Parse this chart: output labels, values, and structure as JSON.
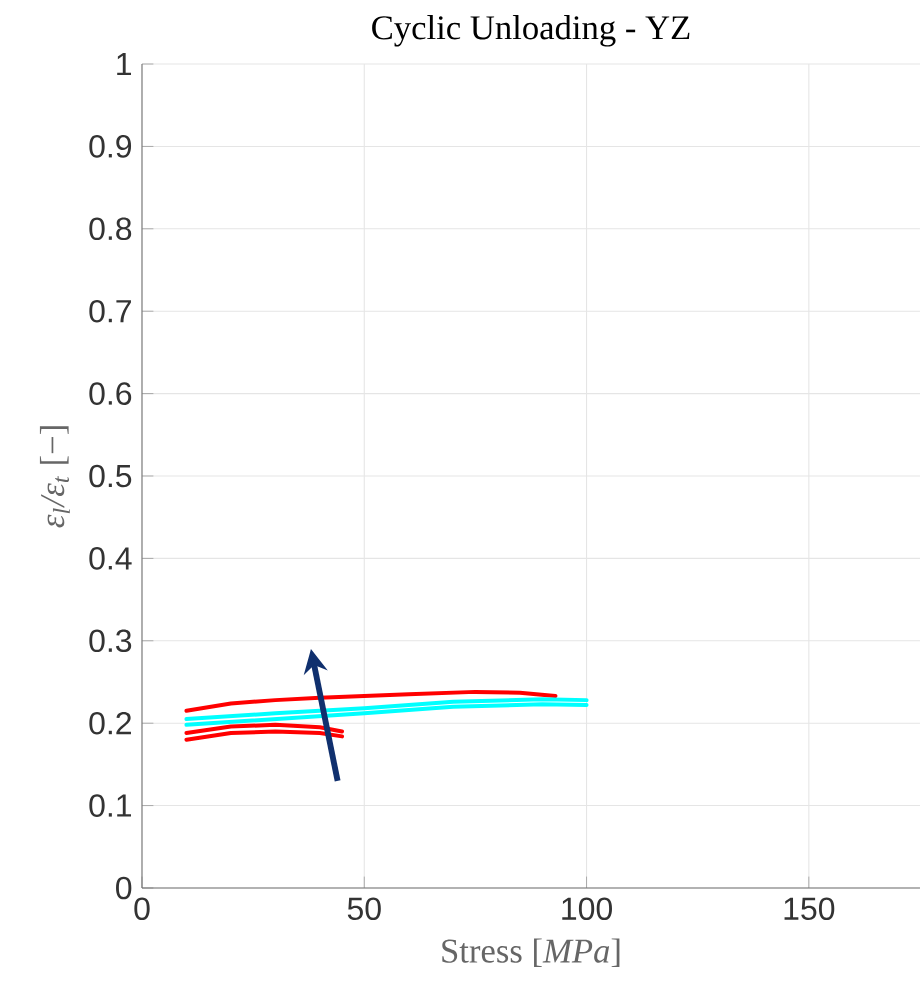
{
  "chart_data": {
    "type": "line",
    "title": "Cyclic Unloading - YZ",
    "xlabel": "Stress [*MPa*]",
    "ylabel": "*ε$_{l}$/ε$_{t}$* [−]",
    "xlim": [
      0,
      175
    ],
    "ylim": [
      0,
      1
    ],
    "xticks": [
      0,
      50,
      100,
      150
    ],
    "yticks": [
      0,
      0.1,
      0.2,
      0.3,
      0.4,
      0.5,
      0.6,
      0.7,
      0.8,
      0.9,
      1
    ],
    "grid": true,
    "marker": "none",
    "line_style": "solid",
    "series": [
      {
        "color": "#ff0000",
        "x": [
          10,
          20,
          30,
          40,
          50,
          60,
          70,
          75,
          85,
          93
        ],
        "values": [
          0.215,
          0.224,
          0.228,
          0.231,
          0.233,
          0.235,
          0.237,
          0.238,
          0.237,
          0.233
        ]
      },
      {
        "color": "#00ffff",
        "x": [
          10,
          30,
          50,
          70,
          90,
          100
        ],
        "values": [
          0.205,
          0.212,
          0.218,
          0.226,
          0.229,
          0.228
        ]
      },
      {
        "color": "#00ffff",
        "x": [
          10,
          30,
          50,
          70,
          90,
          100
        ],
        "values": [
          0.198,
          0.205,
          0.212,
          0.22,
          0.223,
          0.222
        ]
      },
      {
        "color": "#ff0000",
        "x": [
          10,
          20,
          30,
          40,
          45
        ],
        "values": [
          0.18,
          0.188,
          0.19,
          0.188,
          0.184
        ]
      },
      {
        "color": "#ff0000",
        "x": [
          10,
          20,
          30,
          40,
          45
        ],
        "values": [
          0.188,
          0.196,
          0.198,
          0.195,
          0.19
        ]
      }
    ]
  }
}
